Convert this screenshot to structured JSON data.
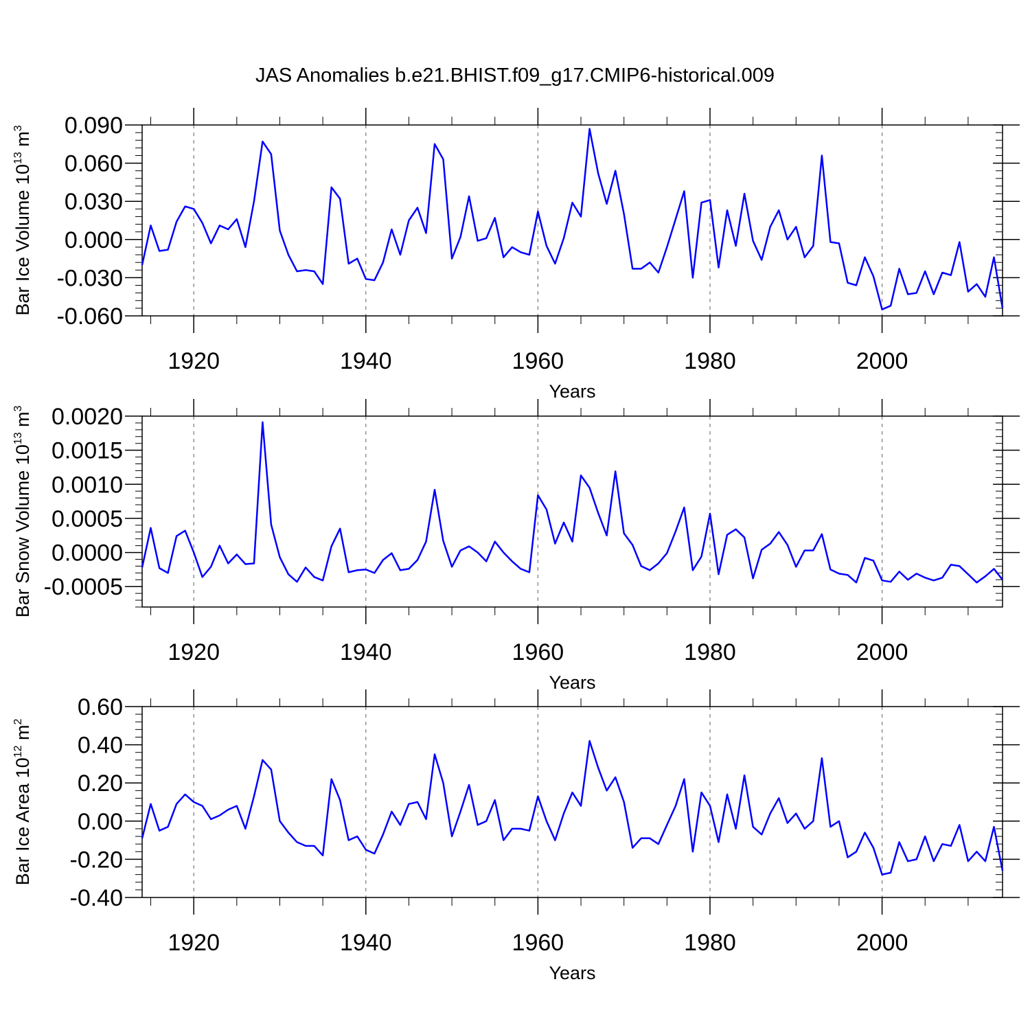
{
  "title": "JAS Anomalies b.e21.BHIST.f09_g17.CMIP6-historical.009",
  "line_color": "#0000ff",
  "chart_data": [
    {
      "type": "line",
      "name": "ice-volume",
      "ylabel_main": "Bar Ice Volume 10",
      "ylabel_exp": "13",
      "ylabel_unit": " m",
      "ylabel_unit_exp": "3",
      "xlabel": "Years",
      "xlim": [
        1914,
        2014
      ],
      "ylim": [
        -0.06,
        0.09
      ],
      "yticks": [
        -0.06,
        -0.03,
        0.0,
        0.03,
        0.06,
        0.09
      ],
      "ytick_labels": [
        "-0.060",
        "-0.030",
        "0.000",
        "0.030",
        "0.060",
        "0.090"
      ],
      "yminor_step": 0.006,
      "xticks": [
        1920,
        1940,
        1960,
        1980,
        2000
      ],
      "xtick_labels": [
        "1920",
        "1940",
        "1960",
        "1980",
        "2000"
      ],
      "x_start": 1914,
      "values": [
        -0.02,
        0.011,
        -0.009,
        -0.008,
        0.014,
        0.026,
        0.024,
        0.013,
        -0.003,
        0.011,
        0.008,
        0.016,
        -0.006,
        0.03,
        0.077,
        0.067,
        0.007,
        -0.012,
        -0.025,
        -0.024,
        -0.025,
        -0.035,
        0.041,
        0.032,
        -0.019,
        -0.015,
        -0.031,
        -0.032,
        -0.018,
        0.008,
        -0.012,
        0.015,
        0.025,
        0.005,
        0.075,
        0.063,
        -0.015,
        0.002,
        0.034,
        -0.001,
        0.001,
        0.017,
        -0.014,
        -0.006,
        -0.01,
        -0.012,
        0.022,
        -0.005,
        -0.019,
        0.001,
        0.029,
        0.018,
        0.087,
        0.052,
        0.028,
        0.054,
        0.02,
        -0.023,
        -0.023,
        -0.018,
        -0.026,
        -0.006,
        0.016,
        0.038,
        -0.03,
        0.029,
        0.031,
        -0.022,
        0.023,
        -0.005,
        0.036,
        -0.001,
        -0.016,
        0.01,
        0.023,
        0.0,
        0.01,
        -0.014,
        -0.005,
        0.066,
        -0.002,
        -0.003,
        -0.034,
        -0.036,
        -0.014,
        -0.029,
        -0.055,
        -0.052,
        -0.023,
        -0.043,
        -0.042,
        -0.025,
        -0.043,
        -0.026,
        -0.028,
        -0.002,
        -0.041,
        -0.035,
        -0.045,
        -0.014,
        -0.054
      ]
    },
    {
      "type": "line",
      "name": "snow-volume",
      "ylabel_main": "Bar Snow Volume 10",
      "ylabel_exp": "13",
      "ylabel_unit": " m",
      "ylabel_unit_exp": "3",
      "xlabel": "Years",
      "xlim": [
        1914,
        2014
      ],
      "ylim": [
        -0.0008,
        0.002
      ],
      "yticks": [
        -0.0005,
        0.0,
        0.0005,
        0.001,
        0.0015,
        0.002
      ],
      "ytick_labels": [
        "-0.0005",
        "0.0000",
        "0.0005",
        "0.0010",
        "0.0015",
        "0.0020"
      ],
      "yminor_step": 0.0001,
      "xticks": [
        1920,
        1940,
        1960,
        1980,
        2000
      ],
      "xtick_labels": [
        "1920",
        "1940",
        "1960",
        "1980",
        "2000"
      ],
      "x_start": 1914,
      "values": [
        -0.00022,
        0.00036,
        -0.00023,
        -0.0003,
        0.00024,
        0.00032,
        0.0,
        -0.00036,
        -0.00021,
        0.0001,
        -0.00016,
        -3e-05,
        -0.00017,
        -0.00016,
        0.00191,
        0.00041,
        -7e-05,
        -0.00032,
        -0.00043,
        -0.00022,
        -0.00036,
        -0.00041,
        9e-05,
        0.00035,
        -0.00029,
        -0.00026,
        -0.00025,
        -0.0003,
        -0.00011,
        -1e-05,
        -0.00026,
        -0.00024,
        -0.00011,
        0.00016,
        0.00092,
        0.00017,
        -0.00021,
        3e-05,
        9e-05,
        0.0,
        -0.00013,
        0.00016,
        0.0,
        -0.00013,
        -0.00024,
        -0.00029,
        0.00084,
        0.00063,
        0.00013,
        0.00044,
        0.00016,
        0.00113,
        0.00095,
        0.00058,
        0.00025,
        0.00119,
        0.00028,
        0.00011,
        -0.0002,
        -0.00026,
        -0.00016,
        -1e-05,
        0.00031,
        0.00066,
        -0.00026,
        -6e-05,
        0.00057,
        -0.00032,
        0.00026,
        0.00034,
        0.00022,
        -0.00038,
        4e-05,
        0.00013,
        0.0003,
        0.00011,
        -0.00021,
        3e-05,
        3e-05,
        0.00027,
        -0.00025,
        -0.00031,
        -0.00033,
        -0.00044,
        -8e-05,
        -0.00012,
        -0.00041,
        -0.00043,
        -0.00028,
        -0.0004,
        -0.00031,
        -0.00037,
        -0.00041,
        -0.00037,
        -0.00018,
        -0.0002,
        -0.00032,
        -0.00044,
        -0.00035,
        -0.00024,
        -0.0004
      ]
    },
    {
      "type": "line",
      "name": "ice-area",
      "ylabel_main": "Bar Ice Area 10",
      "ylabel_exp": "12",
      "ylabel_unit": " m",
      "ylabel_unit_exp": "2",
      "xlabel": "Years",
      "xlim": [
        1914,
        2014
      ],
      "ylim": [
        -0.4,
        0.6
      ],
      "yticks": [
        -0.4,
        -0.2,
        0.0,
        0.2,
        0.4,
        0.6
      ],
      "ytick_labels": [
        "-0.40",
        "-0.20",
        "0.00",
        "0.20",
        "0.40",
        "0.60"
      ],
      "yminor_step": 0.04,
      "xticks": [
        1920,
        1940,
        1960,
        1980,
        2000
      ],
      "xtick_labels": [
        "1920",
        "1940",
        "1960",
        "1980",
        "2000"
      ],
      "x_start": 1914,
      "values": [
        -0.09,
        0.09,
        -0.05,
        -0.03,
        0.09,
        0.14,
        0.1,
        0.08,
        0.01,
        0.03,
        0.06,
        0.08,
        -0.04,
        0.13,
        0.32,
        0.27,
        0.0,
        -0.06,
        -0.11,
        -0.13,
        -0.13,
        -0.18,
        0.22,
        0.11,
        -0.1,
        -0.08,
        -0.15,
        -0.17,
        -0.07,
        0.05,
        -0.02,
        0.09,
        0.1,
        0.01,
        0.35,
        0.2,
        -0.08,
        0.05,
        0.19,
        -0.02,
        0.0,
        0.11,
        -0.1,
        -0.04,
        -0.04,
        -0.05,
        0.13,
        0.0,
        -0.1,
        0.04,
        0.15,
        0.08,
        0.42,
        0.28,
        0.16,
        0.23,
        0.1,
        -0.14,
        -0.09,
        -0.09,
        -0.12,
        -0.02,
        0.08,
        0.22,
        -0.16,
        0.15,
        0.08,
        -0.11,
        0.14,
        -0.04,
        0.24,
        -0.03,
        -0.07,
        0.04,
        0.12,
        -0.01,
        0.04,
        -0.04,
        0.0,
        0.33,
        -0.03,
        0.0,
        -0.19,
        -0.16,
        -0.06,
        -0.14,
        -0.28,
        -0.27,
        -0.11,
        -0.21,
        -0.2,
        -0.08,
        -0.21,
        -0.12,
        -0.13,
        -0.02,
        -0.21,
        -0.16,
        -0.21,
        -0.03,
        -0.26
      ]
    }
  ]
}
